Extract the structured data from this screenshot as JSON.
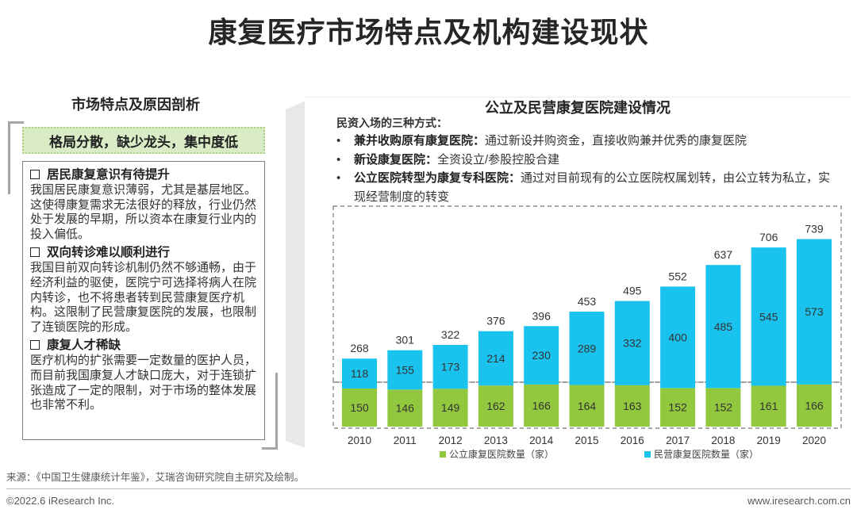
{
  "page": {
    "title": "康复医疗市场特点及机构建设现状",
    "source": "来源：《中国卫生健康统计年鉴》，艾瑞咨询研究院自主研究及绘制。",
    "copyright": "©2022.6 iResearch Inc.",
    "website": "www.iresearch.com.cn"
  },
  "left": {
    "heading": "市场特点及原因剖析",
    "key_point": "格局分散，缺少龙头，集中度低",
    "sections": [
      {
        "title": "居民康复意识有待提升",
        "body": "我国居民康复意识薄弱，尤其是基层地区。这使得康复需求无法很好的释放，行业仍然处于发展的早期，所以资本在康复行业内的投入偏低。"
      },
      {
        "title": "双向转诊难以顺利进行",
        "body": "我国目前双向转诊机制仍然不够通畅，由于经济利益的驱使，医院宁可选择将病人在院内转诊，也不将患者转到民营康复医疗机构。这限制了民营康复医院的发展，也限制了连锁医院的形成。"
      },
      {
        "title": "康复人才稀缺",
        "body": "医疗机构的扩张需要一定数量的医护人员，而目前我国康复人才缺口庞大，对于连锁扩张造成了一定的限制，对于市场的整体发展也非常不利。"
      }
    ]
  },
  "right": {
    "chart_title": "公立及民营康复医院建设情况",
    "list_heading": "民资入场的三种方式：",
    "bullet_symbol": "•",
    "bullets": [
      {
        "bold": "兼并收购原有康复医院：",
        "text": "通过新设并购资金，直接收购兼并优秀的康复医院"
      },
      {
        "bold": "新设康复医院：",
        "text": "全资设立/参股控股合建"
      },
      {
        "bold": "公立医院转型为康复专科医院：",
        "text": "通过对目前现有的公立医院权属划转，由公立转为私立，实现经营制度的转变"
      }
    ]
  },
  "chart_data": {
    "type": "bar",
    "stacked": true,
    "title": "公立及民营康复医院建设情况",
    "categories": [
      "2010",
      "2011",
      "2012",
      "2013",
      "2014",
      "2015",
      "2016",
      "2017",
      "2018",
      "2019",
      "2020"
    ],
    "series": [
      {
        "name": "公立康复医院数量（家）",
        "color": "#92c83e",
        "values": [
          150,
          146,
          149,
          162,
          166,
          164,
          163,
          152,
          152,
          161,
          166
        ]
      },
      {
        "name": "民营康复医院数量（家）",
        "color": "#1ac2ee",
        "values": [
          118,
          155,
          173,
          214,
          230,
          289,
          332,
          400,
          485,
          545,
          573
        ]
      }
    ],
    "totals": [
      268,
      301,
      322,
      376,
      396,
      453,
      495,
      552,
      637,
      706,
      739
    ],
    "grid": false,
    "legend_position": "bottom",
    "value_axis_visible": false
  }
}
